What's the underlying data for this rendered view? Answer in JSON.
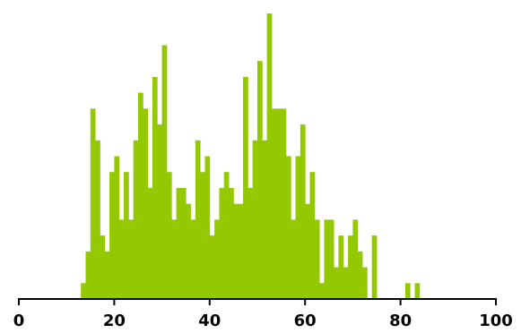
{
  "chart_data": {
    "type": "bar",
    "title": "",
    "xlabel": "",
    "ylabel": "",
    "xlim": [
      0,
      100
    ],
    "ylim": [
      0,
      18
    ],
    "bin_width": 1,
    "color": "#94c800",
    "grid": false,
    "x_ticks": [
      0,
      20,
      40,
      60,
      80,
      100
    ],
    "x_tick_labels": [
      "0",
      "20",
      "40",
      "60",
      "80",
      "100"
    ],
    "x": [
      13,
      14,
      15,
      16,
      17,
      18,
      19,
      20,
      21,
      22,
      23,
      24,
      25,
      26,
      27,
      28,
      29,
      30,
      31,
      32,
      33,
      34,
      35,
      36,
      37,
      38,
      39,
      40,
      41,
      42,
      43,
      44,
      45,
      46,
      47,
      48,
      49,
      50,
      51,
      52,
      53,
      54,
      55,
      56,
      57,
      58,
      59,
      60,
      61,
      62,
      63,
      64,
      65,
      66,
      67,
      68,
      69,
      70,
      71,
      72,
      73,
      74,
      75,
      76,
      77,
      78,
      79,
      80,
      81,
      82,
      83
    ],
    "values": [
      1,
      3,
      12,
      10,
      4,
      3,
      8,
      9,
      5,
      8,
      5,
      10,
      13,
      12,
      7,
      14,
      11,
      16,
      8,
      5,
      7,
      7,
      6,
      5,
      10,
      8,
      9,
      4,
      5,
      7,
      8,
      7,
      6,
      6,
      14,
      7,
      10,
      15,
      10,
      18,
      12,
      12,
      12,
      9,
      5,
      9,
      11,
      6,
      8,
      5,
      1,
      5,
      5,
      2,
      4,
      2,
      4,
      5,
      3,
      2,
      0,
      4,
      0,
      0,
      0,
      0,
      0,
      0,
      1,
      0,
      1
    ]
  }
}
